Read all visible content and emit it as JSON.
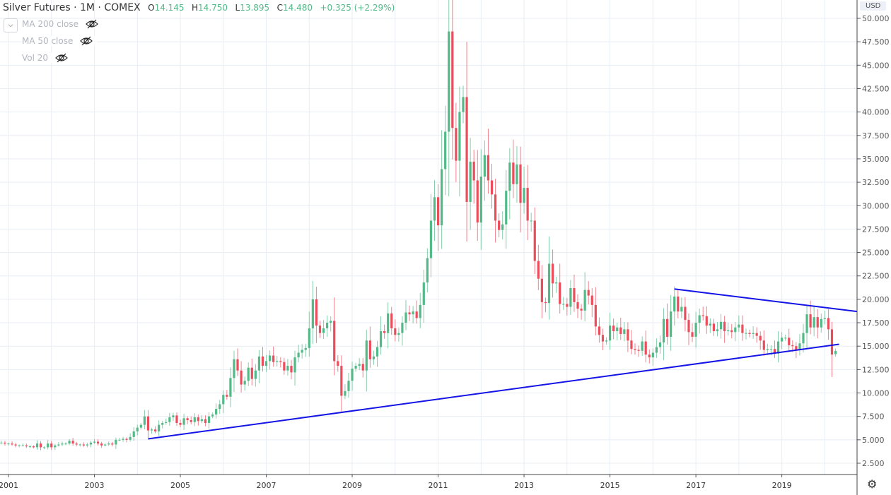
{
  "header": {
    "title": "Silver Futures · 1M · COMEX",
    "open_label": "O",
    "open": "14.145",
    "high_label": "H",
    "high": "14.750",
    "low_label": "L",
    "low": "13.895",
    "close_label": "C",
    "close": "14.480",
    "change": "+0.325 (+2.29%)"
  },
  "indicators": [
    {
      "label": "MA 200 close",
      "icon": "eye-off-icon"
    },
    {
      "label": "MA 50 close",
      "icon": "eye-off-icon"
    },
    {
      "label": "Vol 20",
      "icon": "eye-off-icon"
    }
  ],
  "currency": "USD",
  "colors": {
    "up": "#53b987",
    "down": "#eb4d5c",
    "trendline": "#1414e6",
    "grid": "#e8eef4"
  },
  "chart_data": {
    "type": "candlestick",
    "title": "Silver Futures · 1M · COMEX",
    "interval": "monthly",
    "start": "2000-10",
    "closes": [
      4.7,
      4.7,
      4.6,
      4.6,
      4.5,
      4.4,
      4.4,
      4.4,
      4.3,
      4.3,
      4.2,
      4.6,
      4.2,
      4.2,
      4.6,
      4.2,
      4.4,
      4.5,
      4.6,
      4.6,
      4.9,
      4.6,
      4.5,
      4.5,
      4.4,
      4.5,
      4.7,
      4.8,
      4.6,
      4.4,
      4.5,
      4.6,
      4.5,
      5.0,
      5.0,
      5.1,
      5.0,
      5.3,
      5.9,
      6.3,
      6.6,
      7.5,
      6.0,
      6.1,
      5.9,
      6.6,
      6.8,
      6.9,
      7.4,
      7.6,
      6.8,
      6.6,
      7.3,
      7.1,
      6.9,
      7.4,
      7.0,
      7.2,
      6.8,
      7.5,
      7.7,
      8.3,
      8.8,
      9.8,
      9.6,
      11.6,
      13.6,
      12.4,
      10.9,
      11.3,
      12.7,
      11.5,
      12.4,
      13.9,
      12.9,
      13.4,
      14.0,
      13.3,
      13.4,
      13.3,
      12.4,
      12.9,
      12.2,
      13.8,
      14.3,
      14.6,
      14.8,
      16.9,
      20.0,
      17.2,
      16.4,
      16.9,
      17.5,
      17.7,
      13.4,
      12.9,
      9.7,
      10.2,
      11.3,
      12.6,
      12.9,
      13.1,
      12.4,
      15.6,
      13.6,
      13.9,
      14.9,
      16.6,
      16.4,
      18.5,
      16.9,
      16.2,
      16.4,
      17.5,
      18.6,
      18.4,
      18.7,
      18.0,
      19.4,
      21.8,
      24.4,
      28.4,
      30.9,
      27.9,
      33.9,
      37.9,
      48.6,
      38.3,
      34.8,
      40.0,
      41.6,
      30.4,
      34.7,
      32.7,
      28.2,
      33.1,
      35.4,
      32.7,
      31.2,
      28.4,
      27.4,
      28.0,
      31.6,
      34.6,
      32.3,
      34.4,
      30.3,
      31.9,
      28.4,
      28.4,
      24.1,
      22.2,
      19.7,
      19.6,
      23.8,
      21.7,
      21.8,
      19.5,
      19.5,
      19.2,
      21.2,
      19.7,
      19.0,
      18.8,
      21.0,
      20.4,
      19.4,
      17.1,
      16.2,
      15.5,
      15.6,
      17.2,
      16.6,
      17.0,
      16.3,
      16.8,
      15.6,
      14.7,
      14.6,
      14.5,
      15.5,
      14.1,
      13.8,
      14.3,
      14.9,
      15.4,
      17.9,
      16.0,
      18.7,
      20.3,
      18.7,
      19.2,
      17.8,
      16.5,
      16.0,
      17.5,
      18.3,
      18.2,
      17.2,
      17.4,
      16.6,
      16.8,
      17.6,
      16.6,
      16.7,
      16.5,
      17.0,
      17.3,
      16.4,
      16.4,
      16.3,
      16.4,
      16.1,
      15.6,
      14.6,
      14.7,
      14.7,
      14.2,
      15.5,
      15.9,
      15.9,
      15.1,
      15.0,
      14.6,
      15.3,
      16.4,
      18.4,
      17.0,
      18.1,
      17.0,
      17.9,
      18.0,
      16.8,
      14.1,
      14.48
    ],
    "last_candle": {
      "date": "2020-04",
      "open": 14.145,
      "high": 14.75,
      "low": 13.895,
      "close": 14.48
    },
    "x_ticks": [
      "2001",
      "2003",
      "2005",
      "2007",
      "2009",
      "2011",
      "2013",
      "2015",
      "2017",
      "2019"
    ],
    "y_ticks": [
      "50.000",
      "47.500",
      "45.000",
      "42.500",
      "40.000",
      "37.500",
      "35.000",
      "32.500",
      "30.000",
      "27.500",
      "25.000",
      "22.500",
      "20.000",
      "17.500",
      "15.000",
      "12.500",
      "10.000",
      "7.500",
      "5.000",
      "2.500"
    ],
    "ylim": [
      1.5,
      50.5
    ],
    "trendlines": [
      {
        "name": "support",
        "from": {
          "date": "2004-04",
          "price": 5.1
        },
        "to": {
          "date": "2020-05",
          "price": 15.2
        }
      },
      {
        "name": "resistance",
        "from": {
          "date": "2016-07",
          "price": 21.1
        },
        "to": {
          "date": "2020-10",
          "price": 18.7
        }
      }
    ],
    "grid": true
  }
}
